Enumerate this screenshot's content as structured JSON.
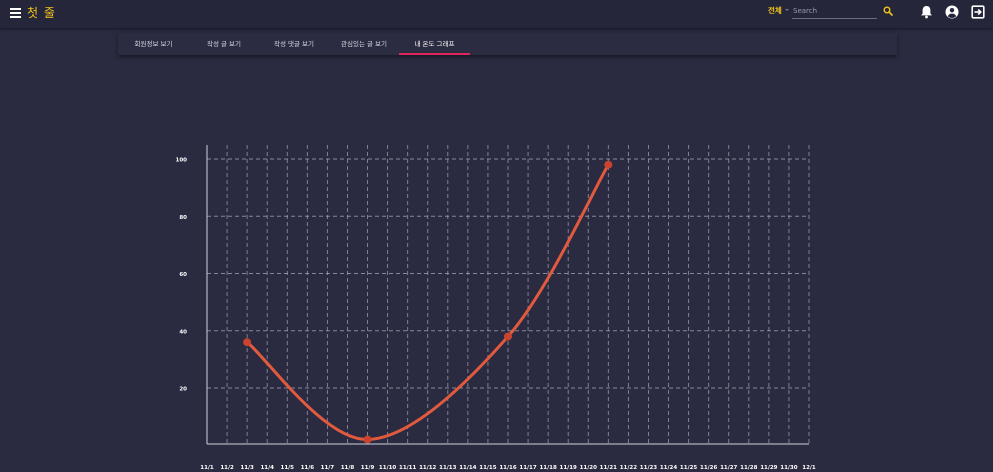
{
  "app": {
    "title": "첫 줄"
  },
  "search": {
    "scope": "전체",
    "placeholder": "Search",
    "value": ""
  },
  "icons": {
    "menu": "menu-icon",
    "search": "search-icon",
    "notifications": "bell-icon",
    "account": "account-circle-icon",
    "logout": "logout-icon"
  },
  "tabs": [
    {
      "label": "회원정보 보기",
      "active": false
    },
    {
      "label": "작성 글 보기",
      "active": false
    },
    {
      "label": "작성 댓글 보기",
      "active": false
    },
    {
      "label": "관심있는 글 보기",
      "active": false
    },
    {
      "label": "내 온도 그래프",
      "active": true
    }
  ],
  "colors": {
    "background": "#2a2b40",
    "accent": "#f5c518",
    "tab_indicator": "#e0245e",
    "line": "#e25a3e",
    "point": "#c9432f",
    "grid": "#a8a8b8"
  },
  "chart_data": {
    "type": "line",
    "title": "",
    "xlabel": "",
    "ylabel": "",
    "x": [
      "11/1",
      "11/2",
      "11/3",
      "11/4",
      "11/5",
      "11/6",
      "11/7",
      "11/8",
      "11/9",
      "11/10",
      "11/11",
      "11/12",
      "11/13",
      "11/14",
      "11/15",
      "11/16",
      "11/17",
      "11/18",
      "11/19",
      "11/20",
      "11/21",
      "11/22",
      "11/23",
      "11/24",
      "11/25",
      "11/26",
      "11/27",
      "11/28",
      "11/29",
      "11/30",
      "12/1"
    ],
    "y_ticks": [
      20,
      40,
      60,
      80,
      100
    ],
    "ylim": [
      0,
      105
    ],
    "grid": true,
    "legend": "none",
    "series": [
      {
        "name": "",
        "points": [
          {
            "x": "11/3",
            "y": 36
          },
          {
            "x": "11/9",
            "y": 2
          },
          {
            "x": "11/16",
            "y": 38
          },
          {
            "x": "11/21",
            "y": 98
          }
        ]
      }
    ]
  }
}
